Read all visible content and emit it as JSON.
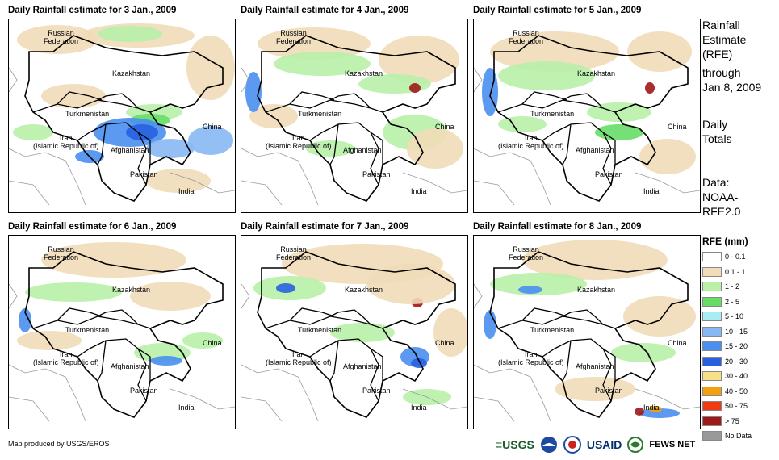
{
  "panels": [
    {
      "title": "Daily Rainfall estimate for 3 Jan., 2009"
    },
    {
      "title": "Daily Rainfall estimate for 4 Jan., 2009"
    },
    {
      "title": "Daily Rainfall estimate for 5 Jan., 2009"
    },
    {
      "title": "Daily Rainfall estimate for 6 Jan., 2009"
    },
    {
      "title": "Daily Rainfall estimate for 7 Jan., 2009"
    },
    {
      "title": "Daily Rainfall estimate for 8 Jan., 2009"
    }
  ],
  "map_labels": {
    "russia": "Russian\nFederation",
    "kazakhstan": "Kazakhstan",
    "turkmenistan": "Turkmenistan",
    "iran": "Iran\n(Islamic Republic of)",
    "afghanistan": "Afghanistan",
    "pakistan": "Pakistan",
    "india": "India",
    "china": "China"
  },
  "sidebar": {
    "title_line1": "Rainfall",
    "title_line2": "Estimate",
    "title_line3": "(RFE)",
    "through_label": "through",
    "through_date": "Jan 8, 2009",
    "totals_line1": "Daily",
    "totals_line2": "Totals",
    "source_line1": "Data:",
    "source_line2": "NOAA-",
    "source_line3": "RFE2.0"
  },
  "legend": {
    "title": "RFE (mm)",
    "items": [
      {
        "label": "0 - 0.1",
        "color": "#ffffff"
      },
      {
        "label": "0.1 - 1",
        "color": "#f1dcb8"
      },
      {
        "label": "1 - 2",
        "color": "#b8f0a8"
      },
      {
        "label": "2 - 5",
        "color": "#66dd66"
      },
      {
        "label": "5 - 10",
        "color": "#a8ecf4"
      },
      {
        "label": "10 - 15",
        "color": "#88b8f4"
      },
      {
        "label": "15 - 20",
        "color": "#4a8ef0"
      },
      {
        "label": "20 - 30",
        "color": "#2860e0"
      },
      {
        "label": "30 - 40",
        "color": "#f8e088"
      },
      {
        "label": "40 - 50",
        "color": "#f4a010"
      },
      {
        "label": "50 - 75",
        "color": "#f03a10"
      },
      {
        "label": "> 75",
        "color": "#a01818"
      },
      {
        "label": "No Data",
        "color": "#999999"
      }
    ]
  },
  "footer": {
    "credit": "Map produced by USGS/EROS",
    "logo_usgs": "≡USGS",
    "logo_usaid": "USAID",
    "logo_fews": "FEWS NET"
  }
}
